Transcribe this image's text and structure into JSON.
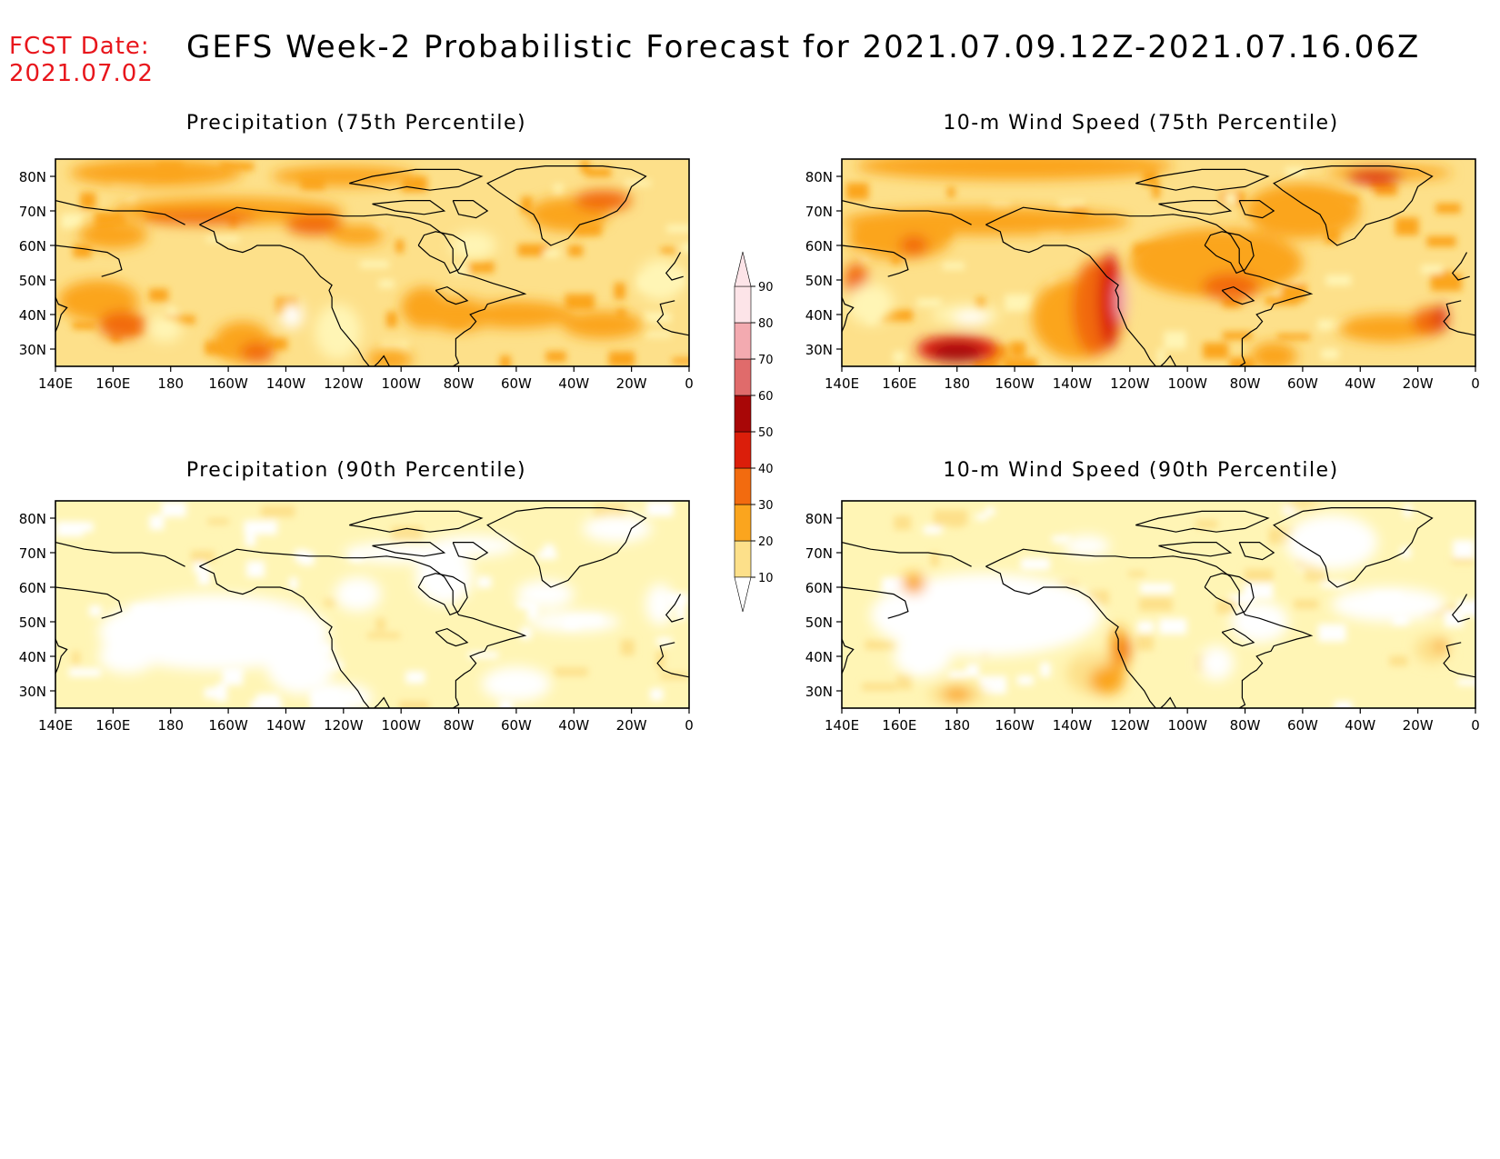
{
  "header": {
    "fcst_label": "FCST Date:",
    "fcst_date": "2021.07.02",
    "title": "GEFS Week-2 Probabilistic Forecast for 2021.07.09.12Z-2021.07.16.06Z"
  },
  "panels": [
    {
      "title": "Precipitation (75th Percentile)",
      "field": "precip75"
    },
    {
      "title": "10-m Wind Speed (75th Percentile)",
      "field": "wind75"
    },
    {
      "title": "Precipitation (90th Percentile)",
      "field": "precip90"
    },
    {
      "title": "10-m Wind Speed (90th Percentile)",
      "field": "wind90"
    }
  ],
  "axes": {
    "lat_ticks": [
      "80N",
      "70N",
      "60N",
      "50N",
      "40N",
      "30N"
    ],
    "lat_values": [
      80,
      70,
      60,
      50,
      40,
      30
    ],
    "lon_ticks": [
      "140E",
      "160E",
      "180",
      "160W",
      "140W",
      "120W",
      "100W",
      "80W",
      "60W",
      "40W",
      "20W",
      "0"
    ],
    "lon_values": [
      140,
      160,
      180,
      200,
      220,
      240,
      260,
      280,
      300,
      320,
      340,
      360
    ],
    "lat_range": [
      25,
      85
    ],
    "lon_range": [
      140,
      360
    ]
  },
  "colorbar": {
    "levels": [
      "10",
      "20",
      "30",
      "40",
      "50",
      "60",
      "70",
      "80",
      "90"
    ],
    "colors": [
      "#ffffff",
      "#fff5b5",
      "#fde08a",
      "#fba51e",
      "#f26b0f",
      "#db1e0a",
      "#a80707",
      "#e06b6b",
      "#f3aab0",
      "#fde4e8"
    ]
  }
}
